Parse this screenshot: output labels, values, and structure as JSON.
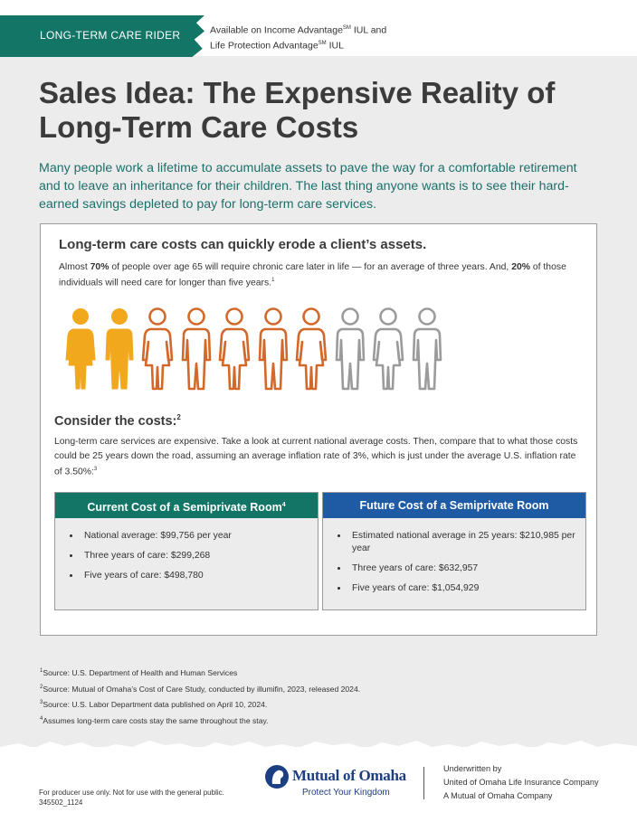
{
  "header": {
    "tag": "LONG-TERM CARE RIDER",
    "availability_line1_a": "Available on Income Advantage",
    "availability_line1_sm": "SM",
    "availability_line1_b": " IUL and",
    "availability_line2_a": "Life Protection Advantage",
    "availability_line2_sm": "SM",
    "availability_line2_b": " IUL"
  },
  "title_line1": "Sales Idea: The Expensive Reality of",
  "title_line2": "Long-Term Care Costs",
  "intro": "Many people work a lifetime to accumulate assets to pave the way for a comfortable retirement and to leave an inheritance for their children. The last thing anyone wants is to see their hard-earned savings depleted to pay for long-term care services.",
  "card": {
    "heading": "Long-term care costs can quickly erode a client’s assets.",
    "p1_a": "Almost ",
    "p1_b": "70%",
    "p1_c": " of people over age 65 will require chronic care later in life — for an average of three years. And, ",
    "p1_d": "20%",
    "p1_e": " of those individuals will need care for longer than five years.",
    "p1_note": "1",
    "people": [
      {
        "style": "filled",
        "color": "#f2a81d"
      },
      {
        "style": "filled",
        "color": "#f2a81d"
      },
      {
        "style": "outline",
        "color": "#d2692a"
      },
      {
        "style": "outline",
        "color": "#d2692a"
      },
      {
        "style": "outline",
        "color": "#d2692a"
      },
      {
        "style": "outline",
        "color": "#d2692a"
      },
      {
        "style": "outline",
        "color": "#d2692a"
      },
      {
        "style": "outline",
        "color": "#9b9b9b"
      },
      {
        "style": "outline",
        "color": "#9b9b9b"
      },
      {
        "style": "outline",
        "color": "#9b9b9b"
      }
    ],
    "consider_heading": "Consider the costs:",
    "consider_note": "2",
    "p2": "Long-term care services are expensive. Take a look at current national average costs. Then, compare that to what those costs could be 25 years down the road, assuming an average inflation rate of 3%, which is just under the average U.S. inflation rate of 3.50%:",
    "p2_note": "3"
  },
  "current_box": {
    "title": "Current Cost of a Semiprivate Room",
    "title_note": "4",
    "color": "#127566",
    "items": [
      "National average: $99,756 per year",
      "Three years of care: $299,268",
      "Five years of care: $498,780"
    ]
  },
  "future_box": {
    "title": "Future Cost of a Semiprivate Room",
    "color": "#1f5aa5",
    "items": [
      "Estimated national average in 25 years: $210,985 per year",
      "Three years of care: $632,957",
      "Five years of care: $1,054,929"
    ]
  },
  "footnotes": [
    {
      "n": "1",
      "text": "Source: U.S. Department of Health and Human Services"
    },
    {
      "n": "2",
      "text": "Source: Mutual of Omaha’s Cost of Care Study, conducted by illumifin, 2023, released 2024."
    },
    {
      "n": "3",
      "text": "Source: U.S. Labor Department data published on April 10, 2024."
    },
    {
      "n": "4",
      "text": "Assumes long-term care costs stay the same throughout the stay."
    }
  ],
  "footer": {
    "producer_line1": "For producer use only.  Not for use with the general public.",
    "producer_line2": "345502_1124",
    "logo_name": "Mutual of Omaha",
    "logo_tagline": "Protect Your Kingdom",
    "underwritten_label": "Underwritten by",
    "underwriter": "United of Omaha Life Insurance Company",
    "parent": "A Mutual of Omaha Company"
  }
}
